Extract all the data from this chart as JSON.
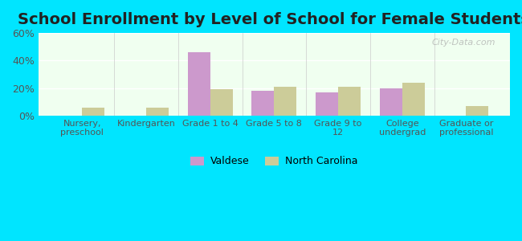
{
  "title": "School Enrollment by Level of School for Female Students",
  "categories": [
    "Nursery,\npreschool",
    "Kindergarten",
    "Grade 1 to 4",
    "Grade 5 to 8",
    "Grade 9 to\n12",
    "College\nundergrad",
    "Graduate or\nprofessional"
  ],
  "valdese": [
    0,
    0,
    46,
    18,
    17,
    20,
    0
  ],
  "north_carolina": [
    6,
    6,
    19,
    21,
    21,
    24,
    7
  ],
  "valdese_color": "#cc99cc",
  "nc_color": "#cccc99",
  "background_outer": "#00e5ff",
  "background_inner_top": "#f0fff0",
  "background_inner_bottom": "#e8f5e0",
  "ylim": [
    0,
    60
  ],
  "yticks": [
    0,
    20,
    40,
    60
  ],
  "ytick_labels": [
    "0%",
    "20%",
    "40%",
    "60%"
  ],
  "legend_labels": [
    "Valdese",
    "North Carolina"
  ],
  "bar_width": 0.35,
  "title_fontsize": 14,
  "watermark": "City-Data.com"
}
